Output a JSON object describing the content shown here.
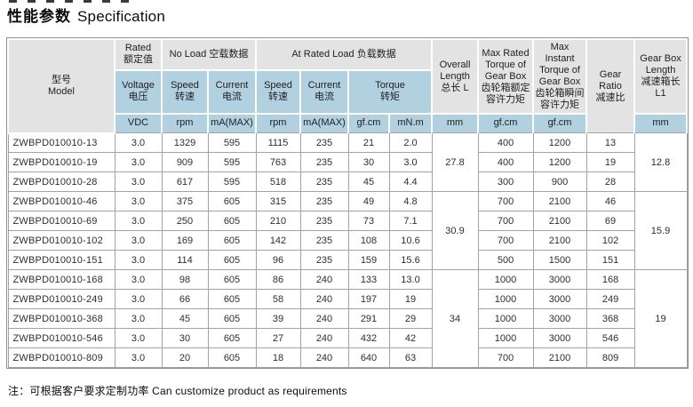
{
  "title": {
    "cn": "性能参数",
    "en": "Specification"
  },
  "footnote": "注：可根据客户要求定制功率  Can customize product as requirements",
  "colors": {
    "header_grey": "#e3e3e3",
    "header_blue": "#b2d1e0",
    "border": "#a3a3a3"
  },
  "table": {
    "header": {
      "model": {
        "cn": "型号",
        "en": "Model"
      },
      "rated": {
        "en": "Rated",
        "cn": "额定值"
      },
      "no_load": "No Load 空载数据",
      "at_rated_load": "At Rated Load 负载数据",
      "voltage": {
        "en": "Voltage",
        "cn": "电压"
      },
      "speed": {
        "en": "Speed",
        "cn": "转速"
      },
      "current": {
        "en": "Current",
        "cn": "电流"
      },
      "torque": {
        "en": "Torque",
        "cn": "转矩"
      },
      "overall_length": {
        "en": "Overall Length",
        "cn": "总长 L"
      },
      "max_rated_torque": {
        "en": "Max Rated Torque of Gear Box",
        "cn": "齿轮箱额定容许力矩"
      },
      "max_instant_torque": {
        "en": "Max Instant Torque of Gear Box",
        "cn": "齿轮箱瞬间容许力矩"
      },
      "gear_ratio": {
        "en": "Gear Ratio",
        "cn": "减速比"
      },
      "gear_box_length": {
        "en": "Gear Box Length",
        "cn": "减速箱长",
        "sub": "L1"
      },
      "units": {
        "voltage": "VDC",
        "speed": "rpm",
        "current": "mA(MAX)",
        "torque_gfcm": "gf.cm",
        "torque_mnm": "mN.m",
        "length": "mm"
      }
    },
    "groups": [
      {
        "overall_length": "27.8",
        "gear_box_length": "12.8",
        "rows": [
          {
            "model": "ZWBPD010010-13",
            "voltage": "3.0",
            "nl_speed": "1329",
            "nl_current": "595",
            "rl_speed": "1115",
            "rl_current": "235",
            "torque_gfcm": "21",
            "torque_mnm": "2.0",
            "max_rated": "400",
            "max_instant": "1200",
            "gear_ratio": "13"
          },
          {
            "model": "ZWBPD010010-19",
            "voltage": "3.0",
            "nl_speed": "909",
            "nl_current": "595",
            "rl_speed": "763",
            "rl_current": "235",
            "torque_gfcm": "30",
            "torque_mnm": "3.0",
            "max_rated": "400",
            "max_instant": "1200",
            "gear_ratio": "19"
          },
          {
            "model": "ZWBPD010010-28",
            "voltage": "3.0",
            "nl_speed": "617",
            "nl_current": "595",
            "rl_speed": "518",
            "rl_current": "235",
            "torque_gfcm": "45",
            "torque_mnm": "4.4",
            "max_rated": "300",
            "max_instant": "900",
            "gear_ratio": "28"
          }
        ]
      },
      {
        "overall_length": "30.9",
        "gear_box_length": "15.9",
        "rows": [
          {
            "model": "ZWBPD010010-46",
            "voltage": "3.0",
            "nl_speed": "375",
            "nl_current": "605",
            "rl_speed": "315",
            "rl_current": "235",
            "torque_gfcm": "49",
            "torque_mnm": "4.8",
            "max_rated": "700",
            "max_instant": "2100",
            "gear_ratio": "46"
          },
          {
            "model": "ZWBPD010010-69",
            "voltage": "3.0",
            "nl_speed": "250",
            "nl_current": "605",
            "rl_speed": "210",
            "rl_current": "235",
            "torque_gfcm": "73",
            "torque_mnm": "7.1",
            "max_rated": "700",
            "max_instant": "2100",
            "gear_ratio": "69"
          },
          {
            "model": "ZWBPD010010-102",
            "voltage": "3.0",
            "nl_speed": "169",
            "nl_current": "605",
            "rl_speed": "142",
            "rl_current": "235",
            "torque_gfcm": "108",
            "torque_mnm": "10.6",
            "max_rated": "700",
            "max_instant": "2100",
            "gear_ratio": "102"
          },
          {
            "model": "ZWBPD010010-151",
            "voltage": "3.0",
            "nl_speed": "114",
            "nl_current": "605",
            "rl_speed": "96",
            "rl_current": "235",
            "torque_gfcm": "159",
            "torque_mnm": "15.6",
            "max_rated": "500",
            "max_instant": "1500",
            "gear_ratio": "151"
          }
        ]
      },
      {
        "overall_length": "34",
        "gear_box_length": "19",
        "rows": [
          {
            "model": "ZWBPD010010-168",
            "voltage": "3.0",
            "nl_speed": "98",
            "nl_current": "605",
            "rl_speed": "86",
            "rl_current": "240",
            "torque_gfcm": "133",
            "torque_mnm": "13.0",
            "max_rated": "1000",
            "max_instant": "3000",
            "gear_ratio": "168"
          },
          {
            "model": "ZWBPD010010-249",
            "voltage": "3.0",
            "nl_speed": "66",
            "nl_current": "605",
            "rl_speed": "58",
            "rl_current": "240",
            "torque_gfcm": "197",
            "torque_mnm": "19",
            "max_rated": "1000",
            "max_instant": "3000",
            "gear_ratio": "249"
          },
          {
            "model": "ZWBPD010010-368",
            "voltage": "3.0",
            "nl_speed": "45",
            "nl_current": "605",
            "rl_speed": "39",
            "rl_current": "240",
            "torque_gfcm": "291",
            "torque_mnm": "29",
            "max_rated": "1000",
            "max_instant": "3000",
            "gear_ratio": "368"
          },
          {
            "model": "ZWBPD010010-546",
            "voltage": "3.0",
            "nl_speed": "30",
            "nl_current": "605",
            "rl_speed": "27",
            "rl_current": "240",
            "torque_gfcm": "432",
            "torque_mnm": "42",
            "max_rated": "1000",
            "max_instant": "3000",
            "gear_ratio": "546"
          },
          {
            "model": "ZWBPD010010-809",
            "voltage": "3.0",
            "nl_speed": "20",
            "nl_current": "605",
            "rl_speed": "18",
            "rl_current": "240",
            "torque_gfcm": "640",
            "torque_mnm": "63",
            "max_rated": "700",
            "max_instant": "2100",
            "gear_ratio": "809"
          }
        ]
      }
    ]
  }
}
